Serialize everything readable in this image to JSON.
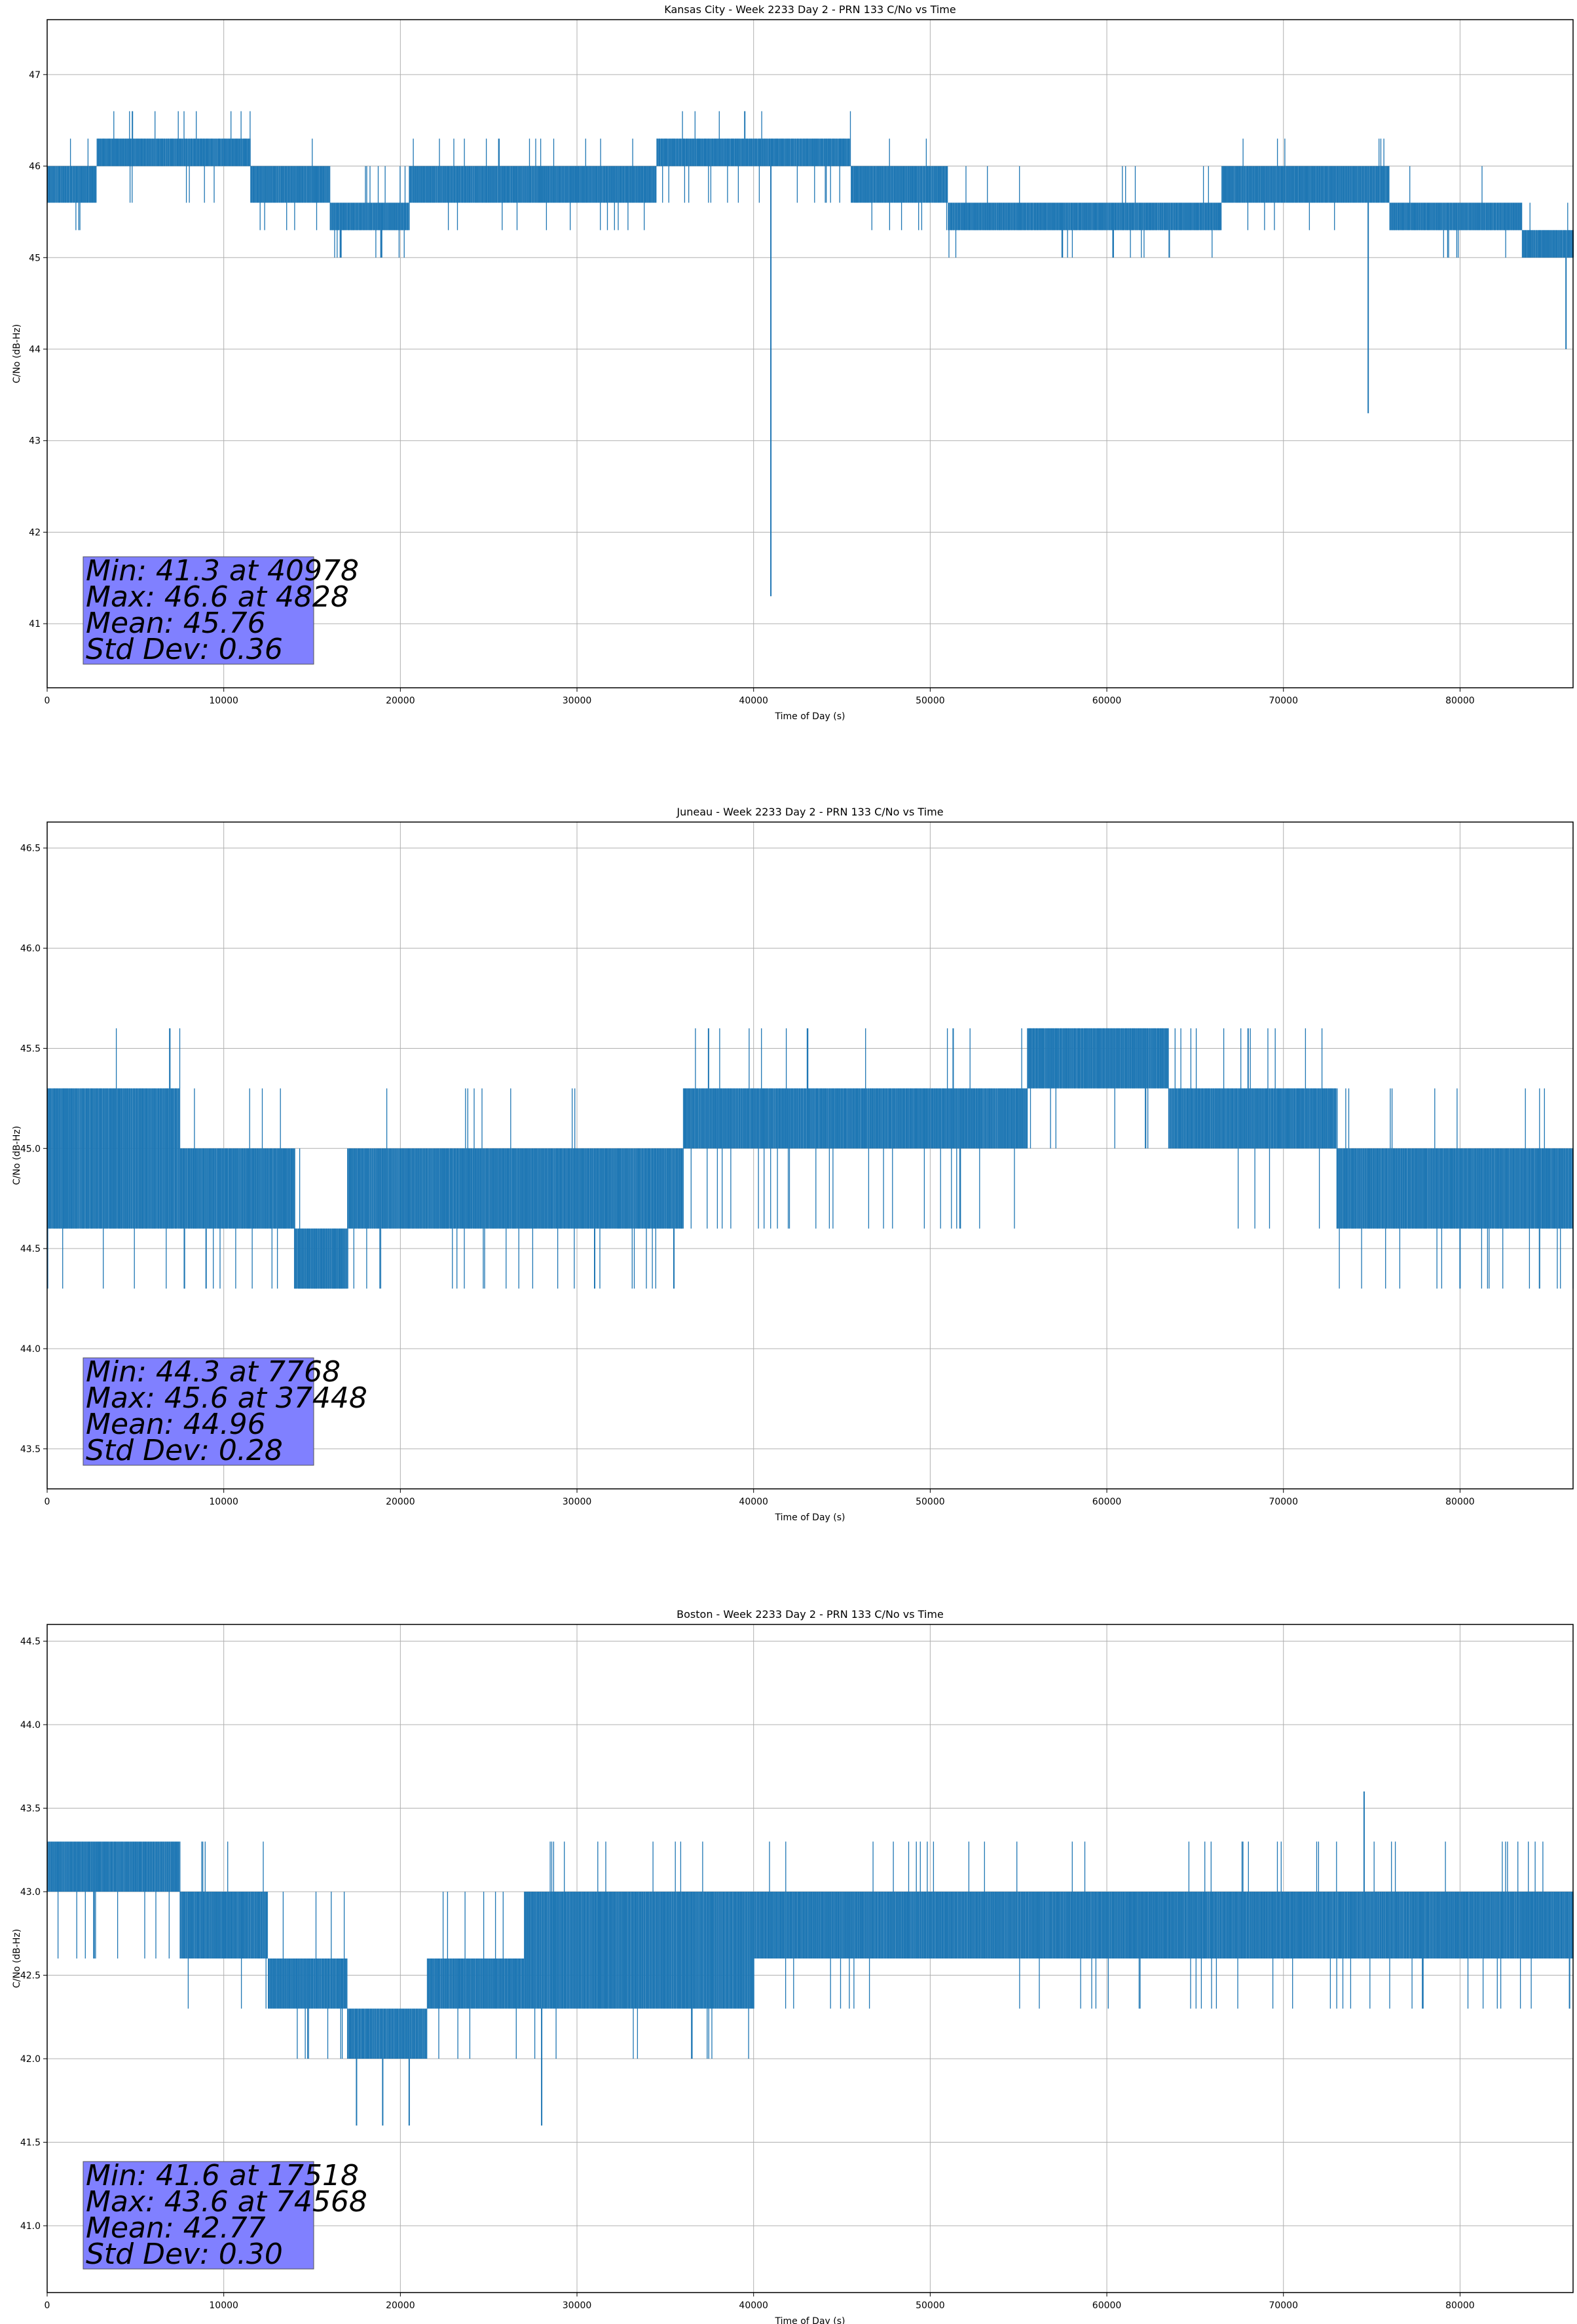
{
  "chart_data": [
    {
      "type": "line",
      "title": "Kansas City - Week 2233 Day 2 - PRN 133 C/No vs Time",
      "xlabel": "Time of Day (s)",
      "ylabel": "C/No (dB-Hz)",
      "xlim": [
        0,
        86400
      ],
      "ylim": [
        40.3,
        47.6
      ],
      "xticks": [
        0,
        10000,
        20000,
        30000,
        40000,
        50000,
        60000,
        70000,
        80000
      ],
      "yticks": [
        41,
        42,
        43,
        44,
        45,
        46,
        47
      ],
      "ytick_labels": [
        "41",
        "42",
        "43",
        "44",
        "45",
        "46",
        "47"
      ],
      "grid": true,
      "line_color": "#1f77b4",
      "levels": [
        45.0,
        45.3,
        45.6,
        46.0,
        46.3,
        46.6
      ],
      "segments": [
        {
          "x0": 0,
          "x1": 2800,
          "low": 45.6,
          "high": 46.0
        },
        {
          "x0": 2800,
          "x1": 11500,
          "low": 46.0,
          "high": 46.3
        },
        {
          "x0": 11500,
          "x1": 16000,
          "low": 45.6,
          "high": 46.0
        },
        {
          "x0": 16000,
          "x1": 20500,
          "low": 45.3,
          "high": 45.6
        },
        {
          "x0": 20500,
          "x1": 34500,
          "low": 45.6,
          "high": 46.0
        },
        {
          "x0": 34500,
          "x1": 45500,
          "low": 46.0,
          "high": 46.3
        },
        {
          "x0": 45500,
          "x1": 51000,
          "low": 45.6,
          "high": 46.0
        },
        {
          "x0": 51000,
          "x1": 66500,
          "low": 45.3,
          "high": 45.6
        },
        {
          "x0": 66500,
          "x1": 76000,
          "low": 45.6,
          "high": 46.0
        },
        {
          "x0": 76000,
          "x1": 83500,
          "low": 45.3,
          "high": 45.6
        },
        {
          "x0": 83500,
          "x1": 86400,
          "low": 45.0,
          "high": 45.3
        }
      ],
      "spikes": [
        {
          "x": 40978,
          "y": 41.3
        },
        {
          "x": 74800,
          "y": 43.3
        },
        {
          "x": 86000,
          "y": 44.0
        },
        {
          "x": 16600,
          "y": 45.0
        },
        {
          "x": 18900,
          "y": 45.0
        },
        {
          "x": 4828,
          "y": 46.6
        },
        {
          "x": 39500,
          "y": 46.6
        }
      ],
      "stats": {
        "min_label": "Min: 41.3 at 40978",
        "max_label": "Max: 46.6 at 4828",
        "mean_label": "Mean: 45.76",
        "std_label": "Std Dev: 0.36"
      },
      "stats_box_color": "#8080ff"
    },
    {
      "type": "line",
      "title": "Juneau - Week 2233 Day 2 - PRN 133 C/No vs Time",
      "xlabel": "Time of Day (s)",
      "ylabel": "C/No (dB-Hz)",
      "xlim": [
        0,
        86400
      ],
      "ylim": [
        43.3,
        46.63
      ],
      "xticks": [
        0,
        10000,
        20000,
        30000,
        40000,
        50000,
        60000,
        70000,
        80000
      ],
      "yticks": [
        43.5,
        44.0,
        44.5,
        45.0,
        45.5,
        46.0,
        46.5
      ],
      "ytick_labels": [
        "43.5",
        "44.0",
        "44.5",
        "45.0",
        "45.5",
        "46.0",
        "46.5"
      ],
      "grid": true,
      "line_color": "#1f77b4",
      "levels": [
        44.3,
        44.6,
        45.0,
        45.3,
        45.6
      ],
      "segments": [
        {
          "x0": 0,
          "x1": 7500,
          "low": 44.6,
          "high": 45.3
        },
        {
          "x0": 7500,
          "x1": 14000,
          "low": 44.6,
          "high": 45.0
        },
        {
          "x0": 14000,
          "x1": 17000,
          "low": 44.3,
          "high": 44.6
        },
        {
          "x0": 17000,
          "x1": 30000,
          "low": 44.6,
          "high": 45.0
        },
        {
          "x0": 30000,
          "x1": 36000,
          "low": 44.6,
          "high": 45.0
        },
        {
          "x0": 36000,
          "x1": 55500,
          "low": 45.0,
          "high": 45.3
        },
        {
          "x0": 55500,
          "x1": 63500,
          "low": 45.3,
          "high": 45.6
        },
        {
          "x0": 63500,
          "x1": 73000,
          "low": 45.0,
          "high": 45.3
        },
        {
          "x0": 73000,
          "x1": 86400,
          "low": 44.6,
          "high": 45.0
        }
      ],
      "spikes": [
        {
          "x": 7768,
          "y": 44.3
        },
        {
          "x": 9000,
          "y": 44.3
        },
        {
          "x": 31000,
          "y": 44.3
        },
        {
          "x": 80000,
          "y": 44.3
        },
        {
          "x": 84500,
          "y": 44.3
        },
        {
          "x": 37448,
          "y": 45.6
        },
        {
          "x": 51300,
          "y": 45.6
        },
        {
          "x": 68000,
          "y": 45.6
        }
      ],
      "stats": {
        "min_label": "Min: 44.3 at 7768",
        "max_label": "Max: 45.6 at 37448",
        "mean_label": "Mean: 44.96",
        "std_label": "Std Dev: 0.28"
      },
      "stats_box_color": "#8080ff"
    },
    {
      "type": "line",
      "title": "Boston - Week 2233 Day 2 - PRN 133 C/No vs Time",
      "xlabel": "Time of Day (s)",
      "ylabel": "C/No (dB-Hz)",
      "xlim": [
        0,
        86400
      ],
      "ylim": [
        40.6,
        44.6
      ],
      "xticks": [
        0,
        10000,
        20000,
        30000,
        40000,
        50000,
        60000,
        70000,
        80000
      ],
      "yticks": [
        41.0,
        41.5,
        42.0,
        42.5,
        43.0,
        43.5,
        44.0,
        44.5
      ],
      "ytick_labels": [
        "41.0",
        "41.5",
        "42.0",
        "42.5",
        "43.0",
        "43.5",
        "44.0",
        "44.5"
      ],
      "grid": true,
      "line_color": "#1f77b4",
      "levels": [
        42.0,
        42.3,
        42.6,
        43.0,
        43.3
      ],
      "segments": [
        {
          "x0": 0,
          "x1": 7500,
          "low": 43.0,
          "high": 43.3
        },
        {
          "x0": 7500,
          "x1": 12500,
          "low": 42.6,
          "high": 43.0
        },
        {
          "x0": 12500,
          "x1": 17000,
          "low": 42.3,
          "high": 42.6
        },
        {
          "x0": 17000,
          "x1": 21500,
          "low": 42.0,
          "high": 42.3
        },
        {
          "x0": 21500,
          "x1": 27000,
          "low": 42.3,
          "high": 42.6
        },
        {
          "x0": 27000,
          "x1": 40000,
          "low": 42.3,
          "high": 43.0
        },
        {
          "x0": 40000,
          "x1": 58000,
          "low": 42.6,
          "high": 43.0
        },
        {
          "x0": 58000,
          "x1": 86400,
          "low": 42.6,
          "high": 43.0
        }
      ],
      "spikes": [
        {
          "x": 17518,
          "y": 41.6
        },
        {
          "x": 19000,
          "y": 41.6
        },
        {
          "x": 20500,
          "y": 41.6
        },
        {
          "x": 28000,
          "y": 41.6
        },
        {
          "x": 74568,
          "y": 43.6
        },
        {
          "x": 86200,
          "y": 42.3
        }
      ],
      "stats": {
        "min_label": "Min: 41.6 at 17518",
        "max_label": "Max: 43.6 at 74568",
        "mean_label": "Mean: 42.77",
        "std_label": "Std Dev: 0.30"
      },
      "stats_box_color": "#8080ff"
    }
  ]
}
